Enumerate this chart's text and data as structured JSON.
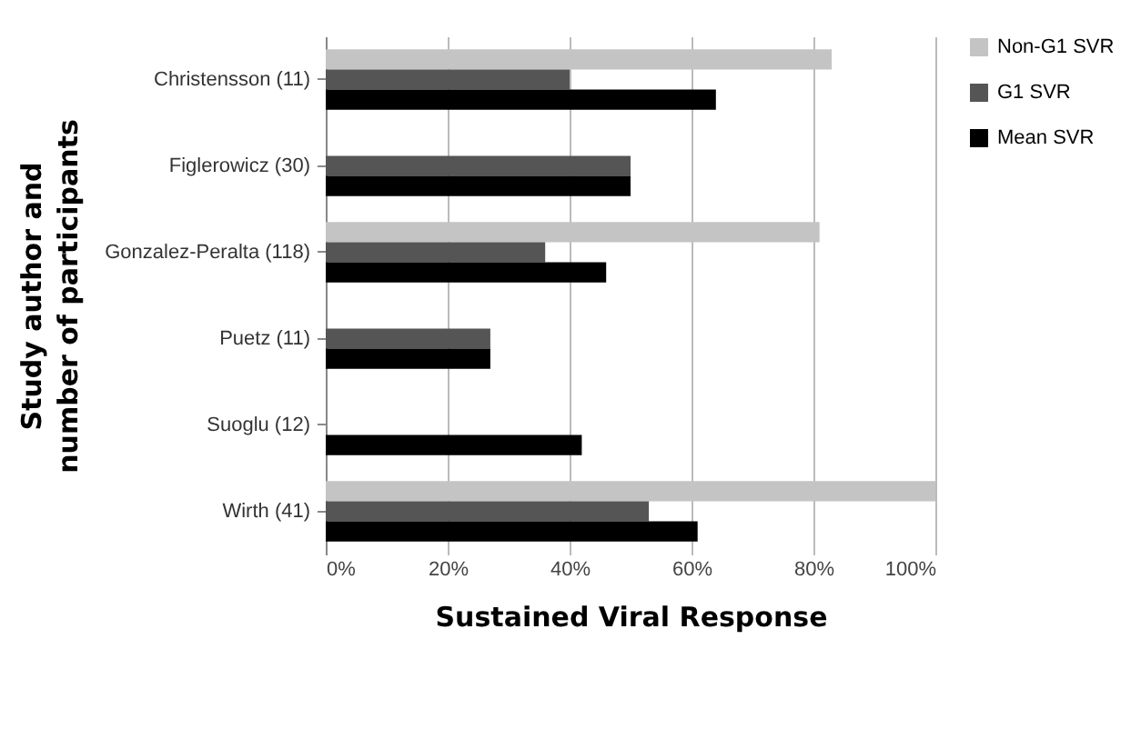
{
  "chart_data": {
    "type": "bar",
    "orientation": "horizontal",
    "xlabel": "Sustained Viral Response",
    "ylabel": "Study author and number of participants",
    "categories": [
      "Christensson (11)",
      "Figlerowicz (30)",
      "Gonzalez-Peralta (118)",
      "Puetz (11)",
      "Suoglu (12)",
      "Wirth (41)"
    ],
    "series": [
      {
        "name": "Non-G1 SVR",
        "color": "#c4c4c4",
        "values": [
          83,
          null,
          81,
          null,
          null,
          100
        ]
      },
      {
        "name": "G1 SVR",
        "color": "#555555",
        "values": [
          40,
          50,
          36,
          27,
          null,
          53
        ]
      },
      {
        "name": "Mean SVR",
        "color": "#000000",
        "values": [
          64,
          50,
          46,
          27,
          42,
          61
        ]
      }
    ],
    "xlim": [
      0,
      100
    ],
    "xticks": [
      {
        "value": 0,
        "label": "0%"
      },
      {
        "value": 20,
        "label": "20%"
      },
      {
        "value": 40,
        "label": "40%"
      },
      {
        "value": 60,
        "label": "60%"
      },
      {
        "value": 80,
        "label": "80%"
      },
      {
        "value": 100,
        "label": "100%"
      }
    ],
    "grid": "x",
    "legend": "right"
  }
}
